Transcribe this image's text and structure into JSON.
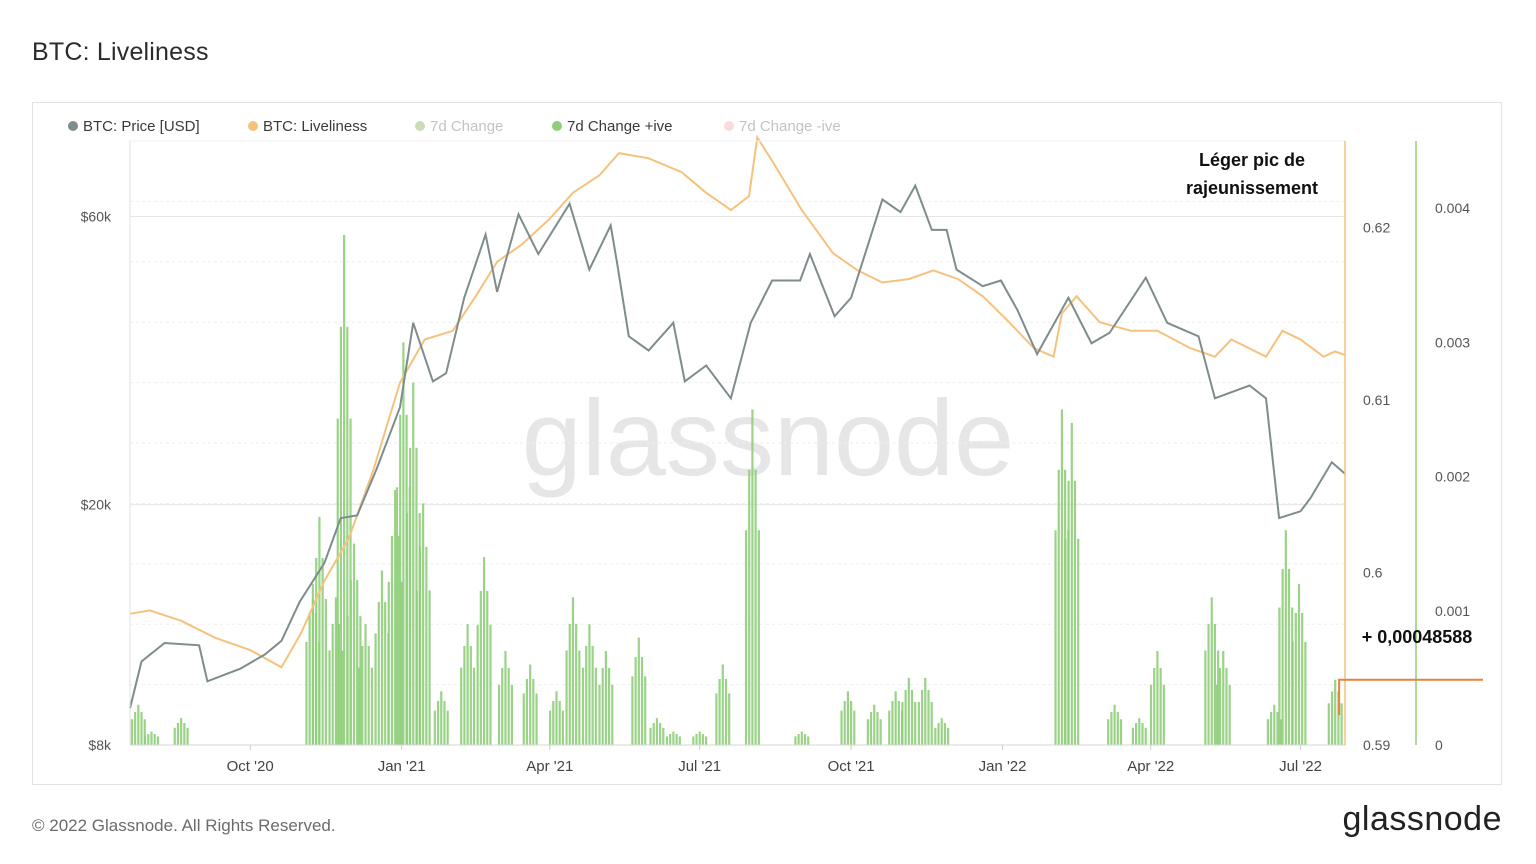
{
  "title": "BTC:  Liveliness",
  "footer": "© 2022 Glassnode. All Rights Reserved.",
  "brand": "glassnode",
  "watermark": "glassnode",
  "legend": [
    {
      "label": "BTC: Price [USD]",
      "color": "#7f8c8d",
      "faded": false
    },
    {
      "label": "BTC: Liveliness",
      "color": "#f5c27e",
      "faded": false
    },
    {
      "label": "7d Change",
      "color": "#5a8f1e",
      "faded": true
    },
    {
      "label": "7d Change +ive",
      "color": "#8fce7a",
      "faded": false
    },
    {
      "label": "7d Change -ive",
      "color": "#f08c8c",
      "faded": true
    }
  ],
  "annotation": {
    "line1": "Léger pic de",
    "line2": "rajeunissement"
  },
  "value_label": "+ 0,00048588",
  "chart_data": {
    "type": "line",
    "x_ticks": [
      "Oct '20",
      "Jan '21",
      "Apr '21",
      "Jul '21",
      "Oct '21",
      "Jan '22",
      "Apr '22",
      "Jul '22"
    ],
    "y_left_ticks": [
      "$60k",
      "$20k",
      "$8k"
    ],
    "y_left_scale": "log",
    "y_left_range": [
      8000,
      80000
    ],
    "y_mid_ticks": [
      "0.62",
      "0.61",
      "0.6",
      "0.59"
    ],
    "y_mid_range": [
      0.59,
      0.625
    ],
    "y_right_ticks": [
      "0.004",
      "0.003",
      "0.002",
      "0.001",
      "0"
    ],
    "y_right_range": [
      0,
      0.0045
    ],
    "x_range": [
      "2020-07-20",
      "2022-07-28"
    ],
    "grid": true,
    "legend_position": "top-left",
    "series": [
      {
        "name": "BTC: Price [USD]",
        "color": "#7f8c8d",
        "axis": "left",
        "points": [
          [
            "2020-07-20",
            9200
          ],
          [
            "2020-07-27",
            11000
          ],
          [
            "2020-08-10",
            11800
          ],
          [
            "2020-08-31",
            11700
          ],
          [
            "2020-09-05",
            10200
          ],
          [
            "2020-09-25",
            10700
          ],
          [
            "2020-10-10",
            11300
          ],
          [
            "2020-10-20",
            11900
          ],
          [
            "2020-10-31",
            13800
          ],
          [
            "2020-11-15",
            16000
          ],
          [
            "2020-11-25",
            19000
          ],
          [
            "2020-12-05",
            19200
          ],
          [
            "2020-12-17",
            23000
          ],
          [
            "2020-12-31",
            29000
          ],
          [
            "2021-01-08",
            40000
          ],
          [
            "2021-01-20",
            32000
          ],
          [
            "2021-01-28",
            33000
          ],
          [
            "2021-02-08",
            44000
          ],
          [
            "2021-02-21",
            56000
          ],
          [
            "2021-02-28",
            45000
          ],
          [
            "2021-03-13",
            60500
          ],
          [
            "2021-03-25",
            52000
          ],
          [
            "2021-04-13",
            63000
          ],
          [
            "2021-04-25",
            49000
          ],
          [
            "2021-05-08",
            58000
          ],
          [
            "2021-05-12",
            50000
          ],
          [
            "2021-05-19",
            38000
          ],
          [
            "2021-05-31",
            36000
          ],
          [
            "2021-06-15",
            40000
          ],
          [
            "2021-06-22",
            32000
          ],
          [
            "2021-07-05",
            34000
          ],
          [
            "2021-07-20",
            30000
          ],
          [
            "2021-08-01",
            40000
          ],
          [
            "2021-08-14",
            47000
          ],
          [
            "2021-08-31",
            47000
          ],
          [
            "2021-09-06",
            52000
          ],
          [
            "2021-09-21",
            41000
          ],
          [
            "2021-10-01",
            44000
          ],
          [
            "2021-10-20",
            64000
          ],
          [
            "2021-10-31",
            61000
          ],
          [
            "2021-11-09",
            67500
          ],
          [
            "2021-11-19",
            57000
          ],
          [
            "2021-11-28",
            57000
          ],
          [
            "2021-12-04",
            49000
          ],
          [
            "2021-12-20",
            46000
          ],
          [
            "2021-12-31",
            47000
          ],
          [
            "2022-01-10",
            42000
          ],
          [
            "2022-01-22",
            35500
          ],
          [
            "2022-02-10",
            44000
          ],
          [
            "2022-02-24",
            37000
          ],
          [
            "2022-03-07",
            38500
          ],
          [
            "2022-03-29",
            47500
          ],
          [
            "2022-04-11",
            40000
          ],
          [
            "2022-04-30",
            38000
          ],
          [
            "2022-05-10",
            30000
          ],
          [
            "2022-05-31",
            31500
          ],
          [
            "2022-06-10",
            30000
          ],
          [
            "2022-06-18",
            19000
          ],
          [
            "2022-07-01",
            19500
          ],
          [
            "2022-07-07",
            20500
          ],
          [
            "2022-07-20",
            23500
          ],
          [
            "2022-07-28",
            22500
          ]
        ]
      },
      {
        "name": "BTC: Liveliness",
        "color": "#f5c27e",
        "axis": "mid",
        "points": [
          [
            "2020-07-20",
            0.5976
          ],
          [
            "2020-08-01",
            0.5978
          ],
          [
            "2020-08-20",
            0.5972
          ],
          [
            "2020-09-10",
            0.5962
          ],
          [
            "2020-10-01",
            0.5955
          ],
          [
            "2020-10-20",
            0.5945
          ],
          [
            "2020-11-01",
            0.5965
          ],
          [
            "2020-11-15",
            0.5995
          ],
          [
            "2020-11-30",
            0.602
          ],
          [
            "2020-12-15",
            0.606
          ],
          [
            "2020-12-31",
            0.611
          ],
          [
            "2021-01-15",
            0.6135
          ],
          [
            "2021-02-01",
            0.614
          ],
          [
            "2021-02-15",
            0.616
          ],
          [
            "2021-02-28",
            0.618
          ],
          [
            "2021-03-15",
            0.619
          ],
          [
            "2021-04-01",
            0.6205
          ],
          [
            "2021-04-15",
            0.622
          ],
          [
            "2021-05-01",
            0.623
          ],
          [
            "2021-05-13",
            0.6243
          ],
          [
            "2021-05-31",
            0.624
          ],
          [
            "2021-06-20",
            0.6232
          ],
          [
            "2021-07-05",
            0.622
          ],
          [
            "2021-07-20",
            0.621
          ],
          [
            "2021-07-31",
            0.6218
          ],
          [
            "2021-08-05",
            0.6252
          ],
          [
            "2021-08-15",
            0.6237
          ],
          [
            "2021-09-01",
            0.621
          ],
          [
            "2021-09-20",
            0.6185
          ],
          [
            "2021-10-05",
            0.6175
          ],
          [
            "2021-10-20",
            0.6168
          ],
          [
            "2021-11-05",
            0.617
          ],
          [
            "2021-11-20",
            0.6175
          ],
          [
            "2021-12-05",
            0.617
          ],
          [
            "2021-12-20",
            0.616
          ],
          [
            "2022-01-05",
            0.6145
          ],
          [
            "2022-01-20",
            0.613
          ],
          [
            "2022-02-01",
            0.6125
          ],
          [
            "2022-02-06",
            0.615
          ],
          [
            "2022-02-15",
            0.616
          ],
          [
            "2022-03-01",
            0.6145
          ],
          [
            "2022-03-20",
            0.614
          ],
          [
            "2022-04-05",
            0.614
          ],
          [
            "2022-04-25",
            0.613
          ],
          [
            "2022-05-10",
            0.6125
          ],
          [
            "2022-05-20",
            0.6135
          ],
          [
            "2022-06-10",
            0.6125
          ],
          [
            "2022-06-20",
            0.614
          ],
          [
            "2022-07-01",
            0.6135
          ],
          [
            "2022-07-15",
            0.6125
          ],
          [
            "2022-07-22",
            0.6128
          ],
          [
            "2022-07-28",
            0.6126
          ]
        ]
      },
      {
        "name": "7d Change +ive",
        "color": "#8fce7a",
        "axis": "right",
        "type": "bar",
        "points": [
          [
            "2020-07-25",
            0.0003
          ],
          [
            "2020-08-02",
            0.0001
          ],
          [
            "2020-08-20",
            0.0002
          ],
          [
            "2020-11-08",
            0.0012
          ],
          [
            "2020-11-12",
            0.0017
          ],
          [
            "2020-11-22",
            0.0011
          ],
          [
            "2020-11-27",
            0.0038
          ],
          [
            "2020-12-03",
            0.0015
          ],
          [
            "2020-12-10",
            0.0009
          ],
          [
            "2020-12-20",
            0.0013
          ],
          [
            "2020-12-28",
            0.0019
          ],
          [
            "2021-01-02",
            0.003
          ],
          [
            "2021-01-08",
            0.0027
          ],
          [
            "2021-01-14",
            0.0018
          ],
          [
            "2021-01-25",
            0.0004
          ],
          [
            "2021-02-10",
            0.0009
          ],
          [
            "2021-02-20",
            0.0014
          ],
          [
            "2021-03-05",
            0.0007
          ],
          [
            "2021-03-20",
            0.0006
          ],
          [
            "2021-04-05",
            0.0004
          ],
          [
            "2021-04-15",
            0.0011
          ],
          [
            "2021-04-25",
            0.0009
          ],
          [
            "2021-05-05",
            0.0007
          ],
          [
            "2021-05-25",
            0.0008
          ],
          [
            "2021-06-05",
            0.0002
          ],
          [
            "2021-06-15",
            0.0001
          ],
          [
            "2021-07-01",
            0.0001
          ],
          [
            "2021-07-15",
            0.0006
          ],
          [
            "2021-08-02",
            0.0025
          ],
          [
            "2021-09-01",
            0.0001
          ],
          [
            "2021-09-29",
            0.0004
          ],
          [
            "2021-10-15",
            0.0003
          ],
          [
            "2021-10-28",
            0.0004
          ],
          [
            "2021-11-05",
            0.0005
          ],
          [
            "2021-11-15",
            0.0005
          ],
          [
            "2021-11-25",
            0.0002
          ],
          [
            "2022-02-06",
            0.0025
          ],
          [
            "2022-02-12",
            0.0024
          ],
          [
            "2022-03-10",
            0.0003
          ],
          [
            "2022-03-25",
            0.0002
          ],
          [
            "2022-04-05",
            0.0007
          ],
          [
            "2022-05-08",
            0.0011
          ],
          [
            "2022-05-15",
            0.0007
          ],
          [
            "2022-06-15",
            0.0003
          ],
          [
            "2022-06-22",
            0.0016
          ],
          [
            "2022-06-30",
            0.0012
          ],
          [
            "2022-07-22",
            0.00048588
          ]
        ]
      }
    ]
  }
}
